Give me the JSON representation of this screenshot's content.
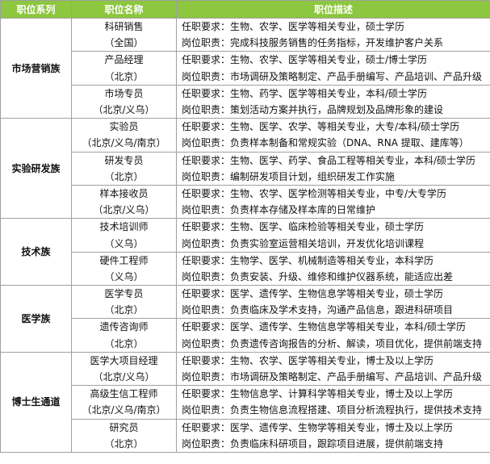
{
  "header": [
    "职位系列",
    "职位名称",
    "职位描述"
  ],
  "groups": [
    {
      "name": "市场营销族",
      "positions": [
        {
          "title": "科研销售",
          "location": "（全国）",
          "requirement": "任职要求：生物、农学、医学等相关专业，硕士学历",
          "duty": "岗位职责：完成科技服务销售的任务指标，开发维护客户关系"
        },
        {
          "title": "产品经理",
          "location": "（北京）",
          "requirement": "任职要求：生物、农学、医学等相关专业，硕士/博士学历",
          "duty": "岗位职责：市场调研及策略制定、产品手册编写、产品培训、产品升级"
        },
        {
          "title": "市场专员",
          "location": "（北京/义乌）",
          "requirement": "任职要求：生物、药学、医学等相关专业，本科/硕士学历",
          "duty": "岗位职责：策划活动方案并执行，品牌规划及品牌形象的建设"
        }
      ]
    },
    {
      "name": "实验研发族",
      "positions": [
        {
          "title": "实验员",
          "location": "（北京/义乌/南京）",
          "requirement": "任职要求：生物、医学、农学、等相关专业，大专/本科/硕士学历",
          "duty": "岗位职责：负责样本制备和常规实验（DNA、RNA 提取、建库等）"
        },
        {
          "title": "研发专员",
          "location": "（北京）",
          "requirement": "任职要求：生物、医学、药学、食品工程等相关专业，本科/硕士学历",
          "duty": "岗位职责：编制研发项目计划，组织研发工作实施"
        },
        {
          "title": "样本接收员",
          "location": "（北京/义乌）",
          "requirement": "任职要求：生物、农学、医学检测等相关专业，中专/大专学历",
          "duty": "岗位职责：负责样本存储及样本库的日常维护"
        }
      ]
    },
    {
      "name": "技术族",
      "positions": [
        {
          "title": "技术培训师",
          "location": "（义乌）",
          "requirement": "任职要求：生物、医学、临床检验等相关专业，硕士学历",
          "duty": "岗位职责：负责实验室运营相关培训，开发优化培训课程"
        },
        {
          "title": "硬件工程师",
          "location": "（义乌）",
          "requirement": "任职要求：生物学、医学、机械制造等相关专业，本科学历",
          "duty": "岗位职责：负责安装、升级、维修和维护仪器系统，能适应出差"
        }
      ]
    },
    {
      "name": "医学族",
      "positions": [
        {
          "title": "医学专员",
          "location": "（北京）",
          "requirement": "任职要求：医学、遗传学、生物信息学等相关专业，硕士学历",
          "duty": "岗位职责：负责临床及学术支持，沟通产品信息，跟进科研项目"
        },
        {
          "title": "遗传咨询师",
          "location": "（北京）",
          "requirement": "任职要求：医学、遗传学、生物信息学等相关专业，本科/硕士学历",
          "duty": "岗位职责：负责遗传咨询报告的分析、解读，项目优化，提供前端支持"
        }
      ]
    },
    {
      "name": "博士生通道",
      "positions": [
        {
          "title": "医学大项目经理",
          "location": "（北京/义乌）",
          "requirement": "任职要求：生物、农学、医学等相关专业，博士及以上学历",
          "duty": "岗位职责：市场调研及策略制定、产品手册编写、产品培训、产品升级"
        },
        {
          "title": "高级生信工程师",
          "location": "（北京/义乌/南京）",
          "requirement": "任职要求：生物信息学、计算科学等相关专业，博士及以上学历",
          "duty": "岗位职责：负责生物信息流程搭建、项目分析流程执行，提供技术支持"
        },
        {
          "title": "研究员",
          "location": "（北京）",
          "requirement": "任职要求：医学、遗传学、生物学等相关专业，博士及以上学历",
          "duty": "岗位职责：负责临床科研项目，跟踪项目进展，提供前端支持"
        }
      ]
    }
  ]
}
